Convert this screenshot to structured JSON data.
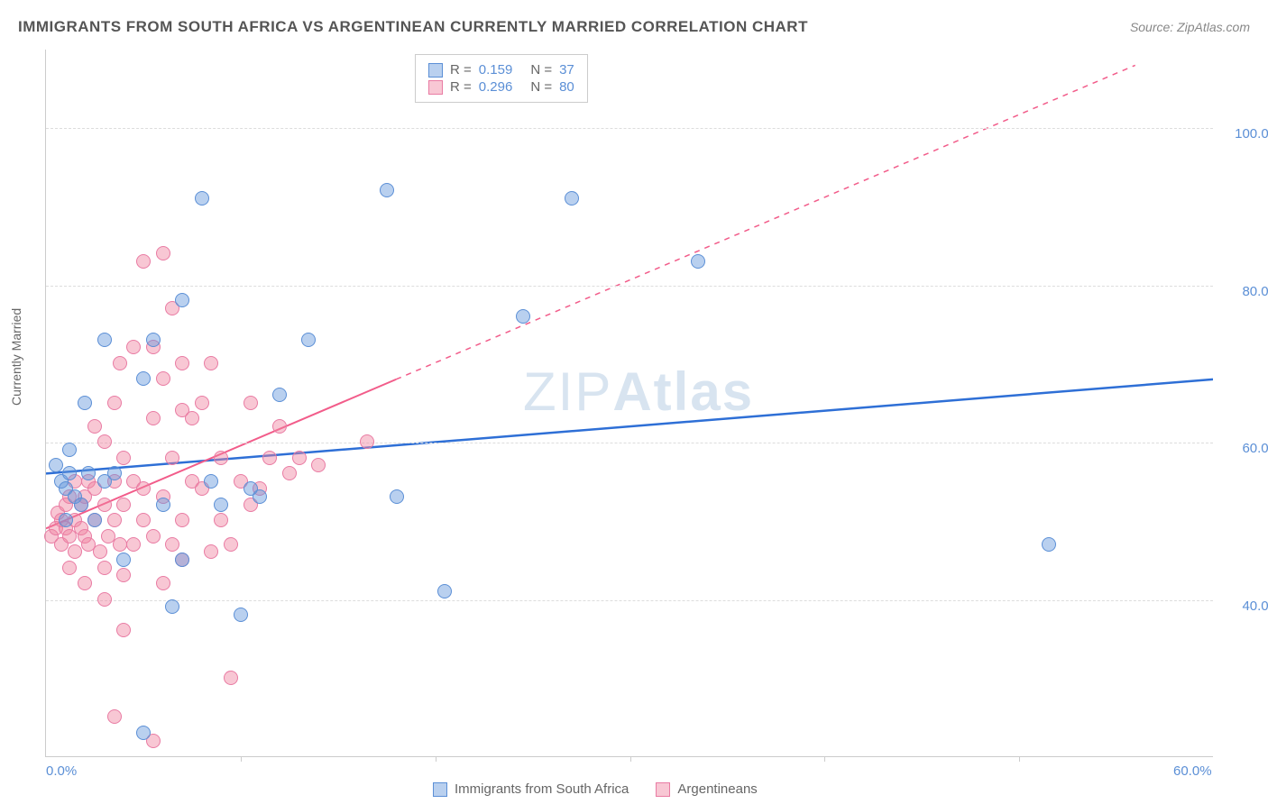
{
  "title": "IMMIGRANTS FROM SOUTH AFRICA VS ARGENTINEAN CURRENTLY MARRIED CORRELATION CHART",
  "source_prefix": "Source: ",
  "source": "ZipAtlas.com",
  "ylabel": "Currently Married",
  "watermark": {
    "part1": "ZIP",
    "part2": "Atlas"
  },
  "chart": {
    "type": "scatter-correlation",
    "background_color": "#ffffff",
    "grid_color": "#dddddd",
    "axis_color": "#cccccc",
    "tick_label_color": "#5b8fd6",
    "tick_fontsize": 15,
    "xlim": [
      0,
      60
    ],
    "ylim": [
      20,
      110
    ],
    "yticks": [
      40,
      60,
      80,
      100
    ],
    "ytick_labels": [
      "40.0%",
      "60.0%",
      "80.0%",
      "100.0%"
    ],
    "xticks": [
      0,
      60
    ],
    "xtick_labels": [
      "0.0%",
      "60.0%"
    ],
    "xtick_marks": [
      10,
      20,
      30,
      40,
      50
    ],
    "series": [
      {
        "name": "Immigrants from South Africa",
        "color_fill": "rgba(100,150,220,0.45)",
        "color_stroke": "#5b8fd6",
        "marker_radius": 8,
        "R": "0.159",
        "N": "37",
        "trend": {
          "x1": 0,
          "y1": 56,
          "x2": 60,
          "y2": 68,
          "color": "#2e6fd6",
          "width": 2.5,
          "dashed_from_x": 60,
          "solid": true
        },
        "points": [
          [
            0.5,
            57
          ],
          [
            0.8,
            55
          ],
          [
            1.0,
            54
          ],
          [
            1.2,
            56
          ],
          [
            1.5,
            53
          ],
          [
            1.0,
            50
          ],
          [
            1.8,
            52
          ],
          [
            2.0,
            65
          ],
          [
            2.2,
            56
          ],
          [
            2.5,
            50
          ],
          [
            3.0,
            73
          ],
          [
            3.0,
            55
          ],
          [
            3.5,
            56
          ],
          [
            4.0,
            45
          ],
          [
            5.0,
            68
          ],
          [
            5.5,
            73
          ],
          [
            6.0,
            52
          ],
          [
            6.5,
            39
          ],
          [
            7.0,
            78
          ],
          [
            7.0,
            45
          ],
          [
            8.0,
            91
          ],
          [
            8.5,
            55
          ],
          [
            9.0,
            52
          ],
          [
            10.0,
            38
          ],
          [
            10.5,
            54
          ],
          [
            11.0,
            53
          ],
          [
            12.0,
            66
          ],
          [
            13.5,
            73
          ],
          [
            17.5,
            92
          ],
          [
            18.0,
            53
          ],
          [
            20.5,
            41
          ],
          [
            24.5,
            76
          ],
          [
            27.0,
            91
          ],
          [
            33.5,
            83
          ],
          [
            51.5,
            47
          ],
          [
            5.0,
            23
          ],
          [
            1.2,
            59
          ]
        ]
      },
      {
        "name": "Argentineans",
        "color_fill": "rgba(240,130,160,0.45)",
        "color_stroke": "#e97ba3",
        "marker_radius": 8,
        "R": "0.296",
        "N": "80",
        "trend": {
          "x1": 0,
          "y1": 49,
          "x2": 18,
          "y2": 68,
          "x2_dash": 56,
          "y2_dash": 108,
          "color": "#f25c8a",
          "width": 2,
          "dashed_from_x": 18
        },
        "points": [
          [
            0.3,
            48
          ],
          [
            0.5,
            49
          ],
          [
            0.6,
            51
          ],
          [
            0.8,
            50
          ],
          [
            0.8,
            47
          ],
          [
            1.0,
            52
          ],
          [
            1.0,
            49
          ],
          [
            1.2,
            53
          ],
          [
            1.2,
            48
          ],
          [
            1.5,
            50
          ],
          [
            1.5,
            46
          ],
          [
            1.5,
            55
          ],
          [
            1.8,
            52
          ],
          [
            1.8,
            49
          ],
          [
            2.0,
            48
          ],
          [
            2.0,
            53
          ],
          [
            2.2,
            55
          ],
          [
            2.2,
            47
          ],
          [
            2.5,
            50
          ],
          [
            2.5,
            62
          ],
          [
            2.5,
            54
          ],
          [
            2.8,
            46
          ],
          [
            3.0,
            52
          ],
          [
            3.0,
            60
          ],
          [
            3.0,
            44
          ],
          [
            3.2,
            48
          ],
          [
            3.5,
            55
          ],
          [
            3.5,
            50
          ],
          [
            3.5,
            65
          ],
          [
            3.8,
            47
          ],
          [
            3.8,
            70
          ],
          [
            4.0,
            52
          ],
          [
            4.0,
            58
          ],
          [
            4.0,
            43
          ],
          [
            4.5,
            55
          ],
          [
            4.5,
            72
          ],
          [
            4.5,
            47
          ],
          [
            5.0,
            54
          ],
          [
            5.0,
            50
          ],
          [
            5.0,
            83
          ],
          [
            5.5,
            63
          ],
          [
            5.5,
            72
          ],
          [
            5.5,
            48
          ],
          [
            6.0,
            84
          ],
          [
            6.0,
            68
          ],
          [
            6.0,
            53
          ],
          [
            6.5,
            77
          ],
          [
            6.5,
            58
          ],
          [
            6.5,
            47
          ],
          [
            7.0,
            70
          ],
          [
            7.0,
            64
          ],
          [
            7.0,
            50
          ],
          [
            7.5,
            55
          ],
          [
            7.5,
            63
          ],
          [
            8.0,
            65
          ],
          [
            8.0,
            54
          ],
          [
            8.5,
            70
          ],
          [
            8.5,
            46
          ],
          [
            9.0,
            50
          ],
          [
            9.0,
            58
          ],
          [
            9.5,
            47
          ],
          [
            9.5,
            30
          ],
          [
            10.0,
            55
          ],
          [
            10.5,
            65
          ],
          [
            10.5,
            52
          ],
          [
            11.0,
            54
          ],
          [
            11.5,
            58
          ],
          [
            12.0,
            62
          ],
          [
            12.5,
            56
          ],
          [
            13.0,
            58
          ],
          [
            14.0,
            57
          ],
          [
            16.5,
            60
          ],
          [
            3.5,
            25
          ],
          [
            4.0,
            36
          ],
          [
            5.5,
            22
          ],
          [
            6.0,
            42
          ],
          [
            7.0,
            45
          ],
          [
            1.2,
            44
          ],
          [
            2.0,
            42
          ],
          [
            3.0,
            40
          ]
        ]
      }
    ],
    "legend_top": {
      "border_color": "#cccccc",
      "r_label": "R  =",
      "n_label": "N  ="
    },
    "legend_bottom": {
      "items": [
        {
          "swatch_fill": "rgba(100,150,220,0.45)",
          "swatch_stroke": "#5b8fd6",
          "label": "Immigrants from South Africa"
        },
        {
          "swatch_fill": "rgba(240,130,160,0.45)",
          "swatch_stroke": "#e97ba3",
          "label": "Argentineans"
        }
      ]
    }
  }
}
